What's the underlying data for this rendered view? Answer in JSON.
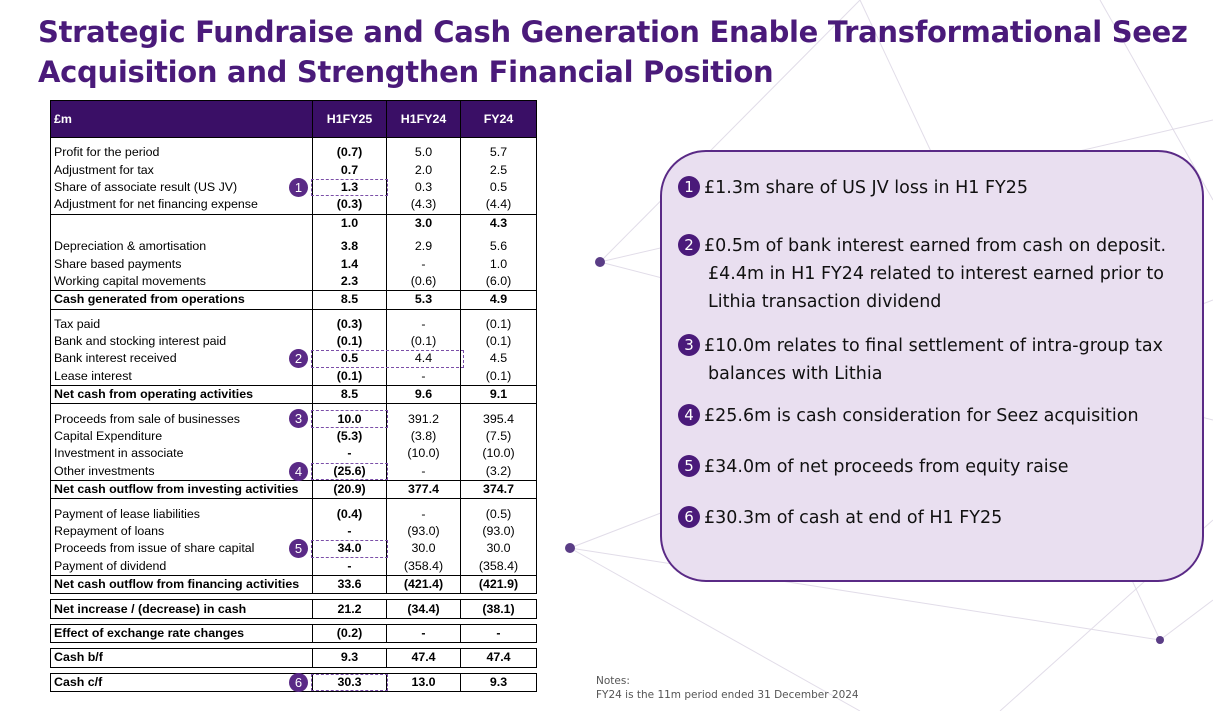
{
  "title": "Strategic Fundraise and Cash Generation Enable Transformational Seez Acquisition and Strengthen Financial Position",
  "colors": {
    "title": "#4a1a7a",
    "header_bg": "#3a0f66",
    "panel_bg": "#e9dff0",
    "accent": "#5a2a86"
  },
  "table": {
    "header": [
      "£m",
      "H1FY25",
      "H1FY24",
      "FY24"
    ],
    "sections": [
      {
        "rows": [
          {
            "label": "Profit for the period",
            "values": [
              "(0.7)",
              "5.0",
              "5.7"
            ]
          },
          {
            "label": "Adjustment for tax",
            "values": [
              "0.7",
              "2.0",
              "2.5"
            ]
          },
          {
            "label": "Share of associate result (US JV)",
            "values": [
              "1.3",
              "0.3",
              "0.5"
            ],
            "marker": "1"
          },
          {
            "label": "Adjustment for net financing expense",
            "values": [
              "(0.3)",
              "(4.3)",
              "(4.4)"
            ]
          },
          {
            "label": "",
            "values": [
              "1.0",
              "3.0",
              "4.3"
            ],
            "subtotal": true
          }
        ]
      },
      {
        "rows": [
          {
            "label": "Depreciation & amortisation",
            "values": [
              "3.8",
              "2.9",
              "5.6"
            ]
          },
          {
            "label": "Share based payments",
            "values": [
              "1.4",
              "-",
              "1.0"
            ]
          },
          {
            "label": "Working capital movements",
            "values": [
              "2.3",
              "(0.6)",
              "(6.0)"
            ]
          },
          {
            "label": "Cash generated from operations",
            "values": [
              "8.5",
              "5.3",
              "4.9"
            ],
            "total": true
          }
        ]
      },
      {
        "rows": [
          {
            "label": "Tax paid",
            "values": [
              "(0.3)",
              "-",
              "(0.1)"
            ]
          },
          {
            "label": "Bank and stocking interest paid",
            "values": [
              "(0.1)",
              "(0.1)",
              "(0.1)"
            ]
          },
          {
            "label": "Bank interest received",
            "values": [
              "0.5",
              "4.4",
              "4.5"
            ],
            "marker": "2"
          },
          {
            "label": "Lease interest",
            "values": [
              "(0.1)",
              "-",
              "(0.1)"
            ]
          },
          {
            "label": "Net cash from operating activities",
            "values": [
              "8.5",
              "9.6",
              "9.1"
            ],
            "total": true
          }
        ]
      },
      {
        "rows": [
          {
            "label": "Proceeds from sale of businesses",
            "values": [
              "10.0",
              "391.2",
              "395.4"
            ],
            "marker": "3"
          },
          {
            "label": "Capital Expenditure",
            "values": [
              "(5.3)",
              "(3.8)",
              "(7.5)"
            ]
          },
          {
            "label": "Investment in associate",
            "values": [
              "-",
              "(10.0)",
              "(10.0)"
            ]
          },
          {
            "label": "Other investments",
            "values": [
              "(25.6)",
              "-",
              "(3.2)"
            ],
            "marker": "4"
          },
          {
            "label": "Net cash outflow from investing activities",
            "values": [
              "(20.9)",
              "377.4",
              "374.7"
            ],
            "total": true
          }
        ]
      },
      {
        "rows": [
          {
            "label": "Payment of lease liabilities",
            "values": [
              "(0.4)",
              "-",
              "(0.5)"
            ]
          },
          {
            "label": "Repayment of loans",
            "values": [
              "-",
              "(93.0)",
              "(93.0)"
            ]
          },
          {
            "label": "Proceeds from issue of share capital",
            "values": [
              "34.0",
              "30.0",
              "30.0"
            ],
            "marker": "5"
          },
          {
            "label": "Payment of dividend",
            "values": [
              "-",
              "(358.4)",
              "(358.4)"
            ]
          },
          {
            "label": "Net cash outflow from financing activities",
            "values": [
              "33.6",
              "(421.4)",
              "(421.9)"
            ],
            "total": true
          }
        ]
      }
    ],
    "summary": [
      {
        "label": "Net increase / (decrease) in cash",
        "values": [
          "21.2",
          "(34.4)",
          "(38.1)"
        ]
      },
      {
        "label": "Effect of exchange rate changes",
        "values": [
          "(0.2)",
          "-",
          "-"
        ]
      },
      {
        "label": "Cash b/f",
        "values": [
          "9.3",
          "47.4",
          "47.4"
        ]
      },
      {
        "label": "Cash c/f",
        "values": [
          "30.3",
          "13.0",
          "9.3"
        ],
        "marker": "6"
      }
    ]
  },
  "notes": [
    {
      "num": "1",
      "lines": [
        "£1.3m share of US JV loss in H1 FY25"
      ]
    },
    {
      "num": "2",
      "lines": [
        "£0.5m of bank interest earned from cash on deposit.",
        "£4.4m in H1 FY24 related to interest earned prior to",
        "Lithia transaction dividend"
      ]
    },
    {
      "num": "3",
      "lines": [
        "£10.0m relates to final settlement of  intra-group tax",
        "balances with Lithia"
      ]
    },
    {
      "num": "4",
      "lines": [
        "£25.6m is cash consideration for Seez acquisition"
      ]
    },
    {
      "num": "5",
      "lines": [
        "£34.0m of net proceeds from equity raise"
      ]
    },
    {
      "num": "6",
      "lines": [
        "£30.3m of cash at end of H1 FY25"
      ]
    }
  ],
  "footnote": {
    "heading": "Notes:",
    "text": "FY24 is the 11m period ended 31 December 2024"
  }
}
